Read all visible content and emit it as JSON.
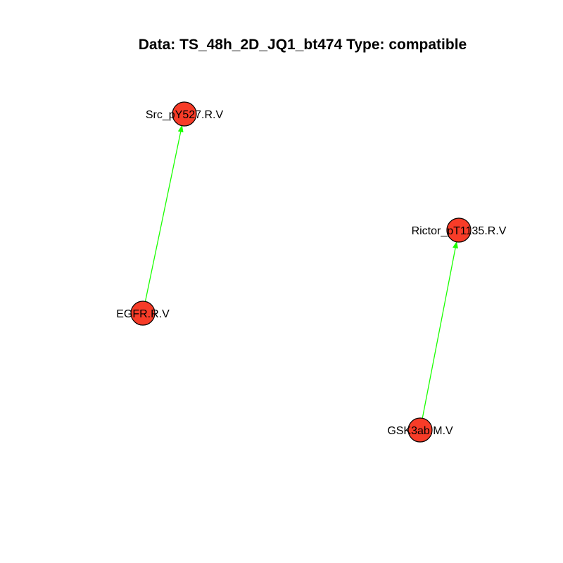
{
  "title": "Data: TS_48h_2D_JQ1_bt474 Type: compatible",
  "colors": {
    "node_fill": "#f73c28",
    "node_stroke": "#000000",
    "edge": "#1aff00",
    "background": "#ffffff"
  },
  "nodes": [
    {
      "id": "src",
      "label": "Src_pY527.R.V"
    },
    {
      "id": "egfr",
      "label": "EGFR.R.V"
    },
    {
      "id": "rictor",
      "label": "Rictor_pT1135.R.V"
    },
    {
      "id": "gsk",
      "label": "GSK3ab.M.V"
    }
  ],
  "edges": [
    {
      "from": "egfr",
      "to": "src",
      "directed": true
    },
    {
      "from": "gsk",
      "to": "rictor",
      "directed": true
    }
  ]
}
